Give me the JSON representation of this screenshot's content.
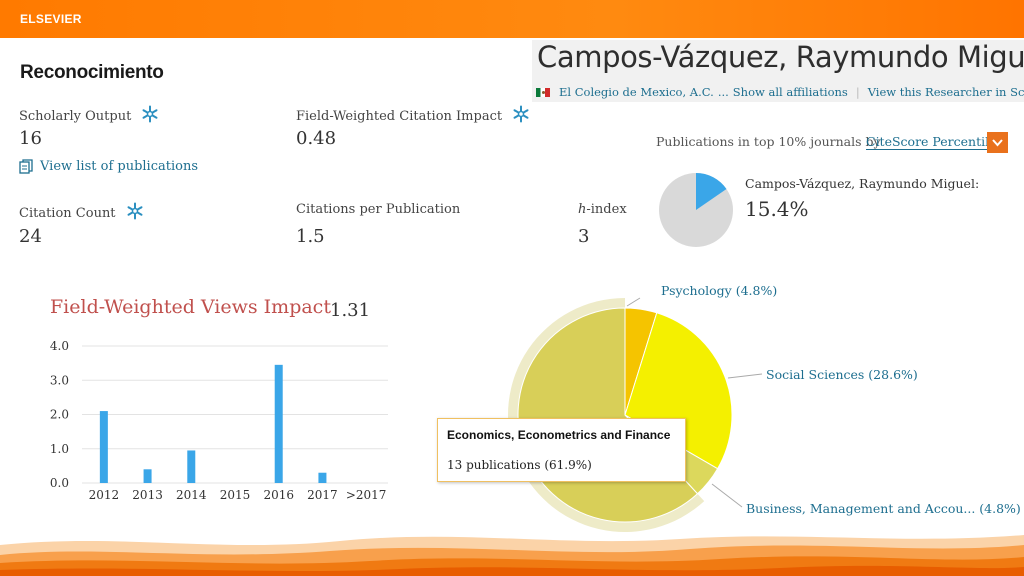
{
  "header": {
    "brand": "ELSEVIER",
    "accent": "#ff7a00"
  },
  "section": {
    "title": "Reconocimiento"
  },
  "researcher": {
    "name": "Campos-Vázquez, Raymundo Miguel",
    "affiliation": "El Colegio de Mexico, A.C.",
    "ellipsis": "...",
    "show_all": "Show all affiliations",
    "separator": "|",
    "view_scopus": "View this Researcher in Scopus",
    "view_scopus_icon": "external-link-icon",
    "flag_icon": "mexico-flag-icon"
  },
  "metrics": {
    "scholarly_output": {
      "label": "Scholarly Output",
      "value": "16",
      "icon": "snowflake-icon"
    },
    "fwci": {
      "label": "Field-Weighted Citation Impact",
      "value": "0.48",
      "icon": "snowflake-icon"
    },
    "citation_count": {
      "label": "Citation Count",
      "value": "24",
      "icon": "snowflake-icon"
    },
    "citations_per_pub": {
      "label": "Citations per Publication",
      "value": "1.5"
    },
    "h_index": {
      "label_h": "h",
      "label_rest": "-index",
      "value": "3"
    }
  },
  "links": {
    "view_publications": "View list of publications",
    "view_publications_icon": "document-list-icon"
  },
  "top10": {
    "label": "Publications in top 10% journals by",
    "select_value": "CiteScore Percentile",
    "select_icon": "chevron-down-icon",
    "owner_label": "Campos-Vázquez, Raymundo Miguel:",
    "percent_label": "15.4%",
    "percent_value": 15.4,
    "colors": {
      "highlight": "#3aa6e8",
      "rest": "#d9d9d9"
    }
  },
  "fwvi": {
    "title": "Field-Weighted Views Impact",
    "value": "1.31"
  },
  "chart_data": [
    {
      "type": "bar",
      "title": "",
      "categories": [
        "2012",
        "2013",
        "2014",
        "2015",
        "2016",
        "2017",
        ">2017"
      ],
      "values": [
        2.1,
        0.4,
        0.95,
        0,
        3.45,
        0.3,
        0
      ],
      "ylim": [
        0,
        4.0
      ],
      "yticks": [
        "0.0",
        "1.0",
        "2.0",
        "3.0",
        "4.0"
      ],
      "grid": true,
      "color": "#3aa6e8"
    },
    {
      "type": "pie",
      "title": "",
      "slices": [
        {
          "label": "Psychology (4.8%)",
          "value": 4.8,
          "color": "#f5c400"
        },
        {
          "label": "Social Sciences (28.6%)",
          "value": 28.6,
          "color": "#f4f000"
        },
        {
          "label": "Business, Management and Accou... (4.8%)",
          "value": 4.8,
          "color": "#dcd85c"
        },
        {
          "label": "Economics, Econometrics and Finance",
          "value": 61.9,
          "color": "#d8cf58"
        }
      ]
    }
  ],
  "tooltip": {
    "title": "Economics, Econometrics and Finance",
    "text": "13 publications (61.9%)"
  }
}
